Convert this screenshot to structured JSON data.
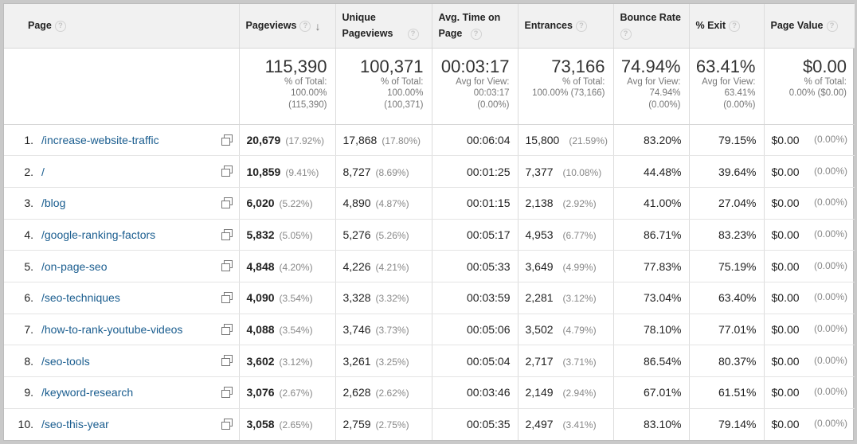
{
  "columns": {
    "page": "Page",
    "pageviews": "Pageviews",
    "unique": "Unique Pageviews",
    "avg_time": "Avg. Time on Page",
    "entrances": "Entrances",
    "bounce": "Bounce Rate",
    "exit": "% Exit",
    "value": "Page Value"
  },
  "totals": {
    "pageviews": {
      "value": "115,390",
      "l1": "% of Total:",
      "l2": "100.00%",
      "l3": "(115,390)"
    },
    "unique": {
      "value": "100,371",
      "l1": "% of Total:",
      "l2": "100.00%",
      "l3": "(100,371)"
    },
    "avg_time": {
      "value": "00:03:17",
      "l1": "Avg for View:",
      "l2": "00:03:17",
      "l3": "(0.00%)"
    },
    "entrances": {
      "value": "73,166",
      "l1": "% of Total:",
      "l2": "100.00% (73,166)"
    },
    "bounce": {
      "value": "74.94%",
      "l1": "Avg for View:",
      "l2": "74.94%",
      "l3": "(0.00%)"
    },
    "exit": {
      "value": "63.41%",
      "l1": "Avg for View:",
      "l2": "63.41%",
      "l3": "(0.00%)"
    },
    "value": {
      "value": "$0.00",
      "l1": "% of Total:",
      "l2": "0.00% ($0.00)"
    }
  },
  "rows": [
    {
      "n": "1.",
      "page": "/increase-website-traffic",
      "pv": "20,679",
      "pv_pct": "(17.92%)",
      "up": "17,868",
      "up_pct": "(17.80%)",
      "time": "00:06:04",
      "ent": "15,800",
      "ent_pct": "(21.59%)",
      "bounce": "83.20%",
      "exit": "79.15%",
      "val": "$0.00",
      "val_pct": "(0.00%)"
    },
    {
      "n": "2.",
      "page": "/",
      "pv": "10,859",
      "pv_pct": "(9.41%)",
      "up": "8,727",
      "up_pct": "(8.69%)",
      "time": "00:01:25",
      "ent": "7,377",
      "ent_pct": "(10.08%)",
      "bounce": "44.48%",
      "exit": "39.64%",
      "val": "$0.00",
      "val_pct": "(0.00%)"
    },
    {
      "n": "3.",
      "page": "/blog",
      "pv": "6,020",
      "pv_pct": "(5.22%)",
      "up": "4,890",
      "up_pct": "(4.87%)",
      "time": "00:01:15",
      "ent": "2,138",
      "ent_pct": "(2.92%)",
      "bounce": "41.00%",
      "exit": "27.04%",
      "val": "$0.00",
      "val_pct": "(0.00%)"
    },
    {
      "n": "4.",
      "page": "/google-ranking-factors",
      "pv": "5,832",
      "pv_pct": "(5.05%)",
      "up": "5,276",
      "up_pct": "(5.26%)",
      "time": "00:05:17",
      "ent": "4,953",
      "ent_pct": "(6.77%)",
      "bounce": "86.71%",
      "exit": "83.23%",
      "val": "$0.00",
      "val_pct": "(0.00%)"
    },
    {
      "n": "5.",
      "page": "/on-page-seo",
      "pv": "4,848",
      "pv_pct": "(4.20%)",
      "up": "4,226",
      "up_pct": "(4.21%)",
      "time": "00:05:33",
      "ent": "3,649",
      "ent_pct": "(4.99%)",
      "bounce": "77.83%",
      "exit": "75.19%",
      "val": "$0.00",
      "val_pct": "(0.00%)"
    },
    {
      "n": "6.",
      "page": "/seo-techniques",
      "pv": "4,090",
      "pv_pct": "(3.54%)",
      "up": "3,328",
      "up_pct": "(3.32%)",
      "time": "00:03:59",
      "ent": "2,281",
      "ent_pct": "(3.12%)",
      "bounce": "73.04%",
      "exit": "63.40%",
      "val": "$0.00",
      "val_pct": "(0.00%)"
    },
    {
      "n": "7.",
      "page": "/how-to-rank-youtube-videos",
      "pv": "4,088",
      "pv_pct": "(3.54%)",
      "up": "3,746",
      "up_pct": "(3.73%)",
      "time": "00:05:06",
      "ent": "3,502",
      "ent_pct": "(4.79%)",
      "bounce": "78.10%",
      "exit": "77.01%",
      "val": "$0.00",
      "val_pct": "(0.00%)"
    },
    {
      "n": "8.",
      "page": "/seo-tools",
      "pv": "3,602",
      "pv_pct": "(3.12%)",
      "up": "3,261",
      "up_pct": "(3.25%)",
      "time": "00:05:04",
      "ent": "2,717",
      "ent_pct": "(3.71%)",
      "bounce": "86.54%",
      "exit": "80.37%",
      "val": "$0.00",
      "val_pct": "(0.00%)"
    },
    {
      "n": "9.",
      "page": "/keyword-research",
      "pv": "3,076",
      "pv_pct": "(2.67%)",
      "up": "2,628",
      "up_pct": "(2.62%)",
      "time": "00:03:46",
      "ent": "2,149",
      "ent_pct": "(2.94%)",
      "bounce": "67.01%",
      "exit": "61.51%",
      "val": "$0.00",
      "val_pct": "(0.00%)"
    },
    {
      "n": "10.",
      "page": "/seo-this-year",
      "pv": "3,058",
      "pv_pct": "(2.65%)",
      "up": "2,759",
      "up_pct": "(2.75%)",
      "time": "00:05:35",
      "ent": "2,497",
      "ent_pct": "(3.41%)",
      "bounce": "83.10%",
      "exit": "79.14%",
      "val": "$0.00",
      "val_pct": "(0.00%)"
    }
  ]
}
